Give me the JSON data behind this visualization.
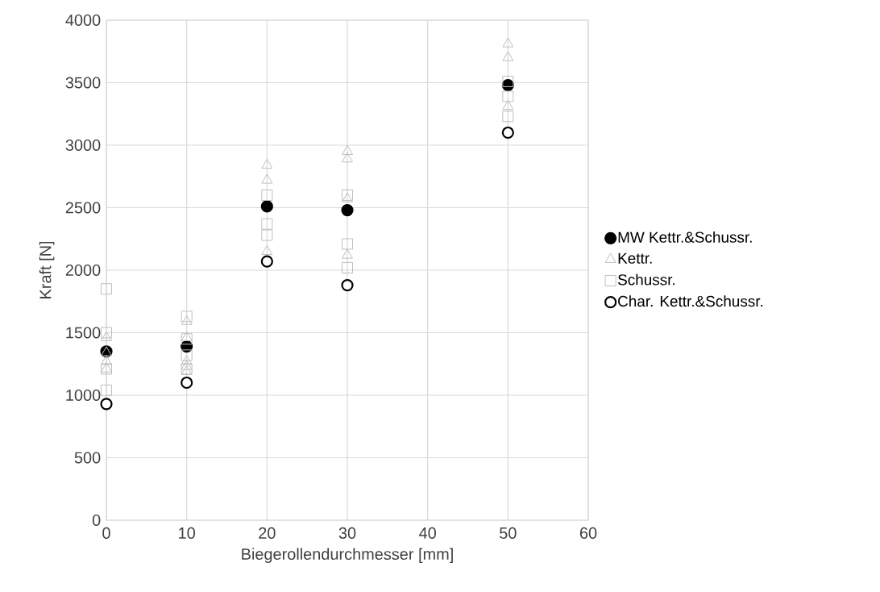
{
  "chart_data": {
    "type": "scatter",
    "xlabel": "Biegerollendurchmesser [mm]",
    "ylabel": "Kraft [N]",
    "xlim": [
      0,
      60
    ],
    "xticks": [
      0,
      10,
      20,
      30,
      40,
      50,
      60
    ],
    "ylim": [
      0,
      4000
    ],
    "yticks": [
      0,
      500,
      1000,
      1500,
      2000,
      2500,
      3000,
      3500,
      4000
    ],
    "grid": true,
    "legend": "right",
    "series": [
      {
        "name": "MW Kettr.&Schussr.",
        "color": "#000000",
        "marker": "circle",
        "x": [
          0,
          10,
          20,
          30,
          50
        ],
        "values": [
          1350,
          1390,
          2510,
          2480,
          3480
        ]
      },
      {
        "name": "Kettr.",
        "color": "#bfbfbf",
        "marker": "triangle",
        "x": [
          0,
          0,
          0,
          0,
          10,
          10,
          10,
          10,
          10,
          20,
          20,
          20,
          30,
          30,
          30,
          30,
          50,
          50,
          50
        ],
        "values": [
          1460,
          1340,
          1270,
          1210,
          1590,
          1460,
          1270,
          1230,
          1190,
          2840,
          2720,
          2150,
          2950,
          2890,
          2570,
          2120,
          3810,
          3700,
          3310
        ]
      },
      {
        "name": "Schussr.",
        "color": "#bfbfbf",
        "marker": "square",
        "x": [
          0,
          0,
          0,
          0,
          10,
          10,
          10,
          10,
          20,
          20,
          20,
          30,
          30,
          30,
          50,
          50,
          50
        ],
        "values": [
          1850,
          1500,
          1210,
          1040,
          1630,
          1450,
          1320,
          1210,
          2600,
          2370,
          2280,
          2600,
          2210,
          2020,
          3510,
          3390,
          3230
        ]
      },
      {
        "name": "Char.  Kettr.&Schussr.",
        "color": "#000000",
        "marker": "circle",
        "x": [
          0,
          10,
          20,
          30,
          50
        ],
        "values": [
          930,
          1100,
          2070,
          1880,
          3100
        ]
      }
    ]
  }
}
